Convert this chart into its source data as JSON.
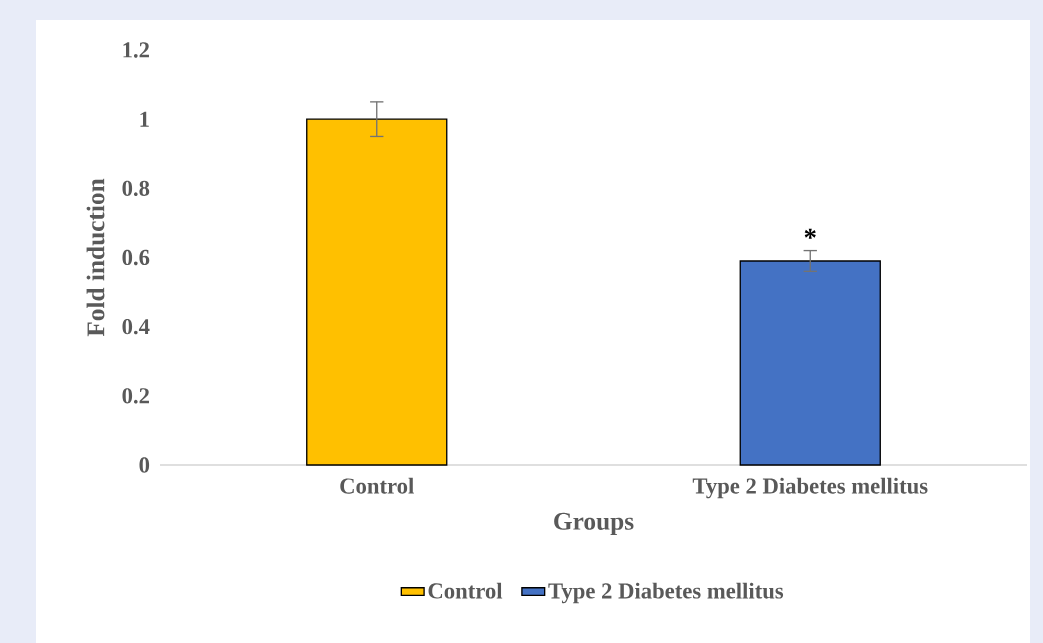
{
  "chart_data": {
    "type": "bar",
    "xlabel": "Groups",
    "ylabel": "Fold induction",
    "categories": [
      "Control",
      "Type 2 Diabetes mellitus"
    ],
    "series": [
      {
        "name": "Control",
        "color": "#ffc000",
        "values": [
          1.0,
          null
        ],
        "errors": [
          0.05,
          null
        ]
      },
      {
        "name": "Type 2 Diabetes mellitus",
        "color": "#4472c4",
        "values": [
          null,
          0.59
        ],
        "errors": [
          null,
          0.03
        ]
      }
    ],
    "ylim": [
      0,
      1.2
    ],
    "yticks": [
      0,
      0.2,
      0.4,
      0.6,
      0.8,
      1,
      1.2
    ],
    "grid": false,
    "legend": "bottom",
    "annotations": [
      "*"
    ]
  }
}
